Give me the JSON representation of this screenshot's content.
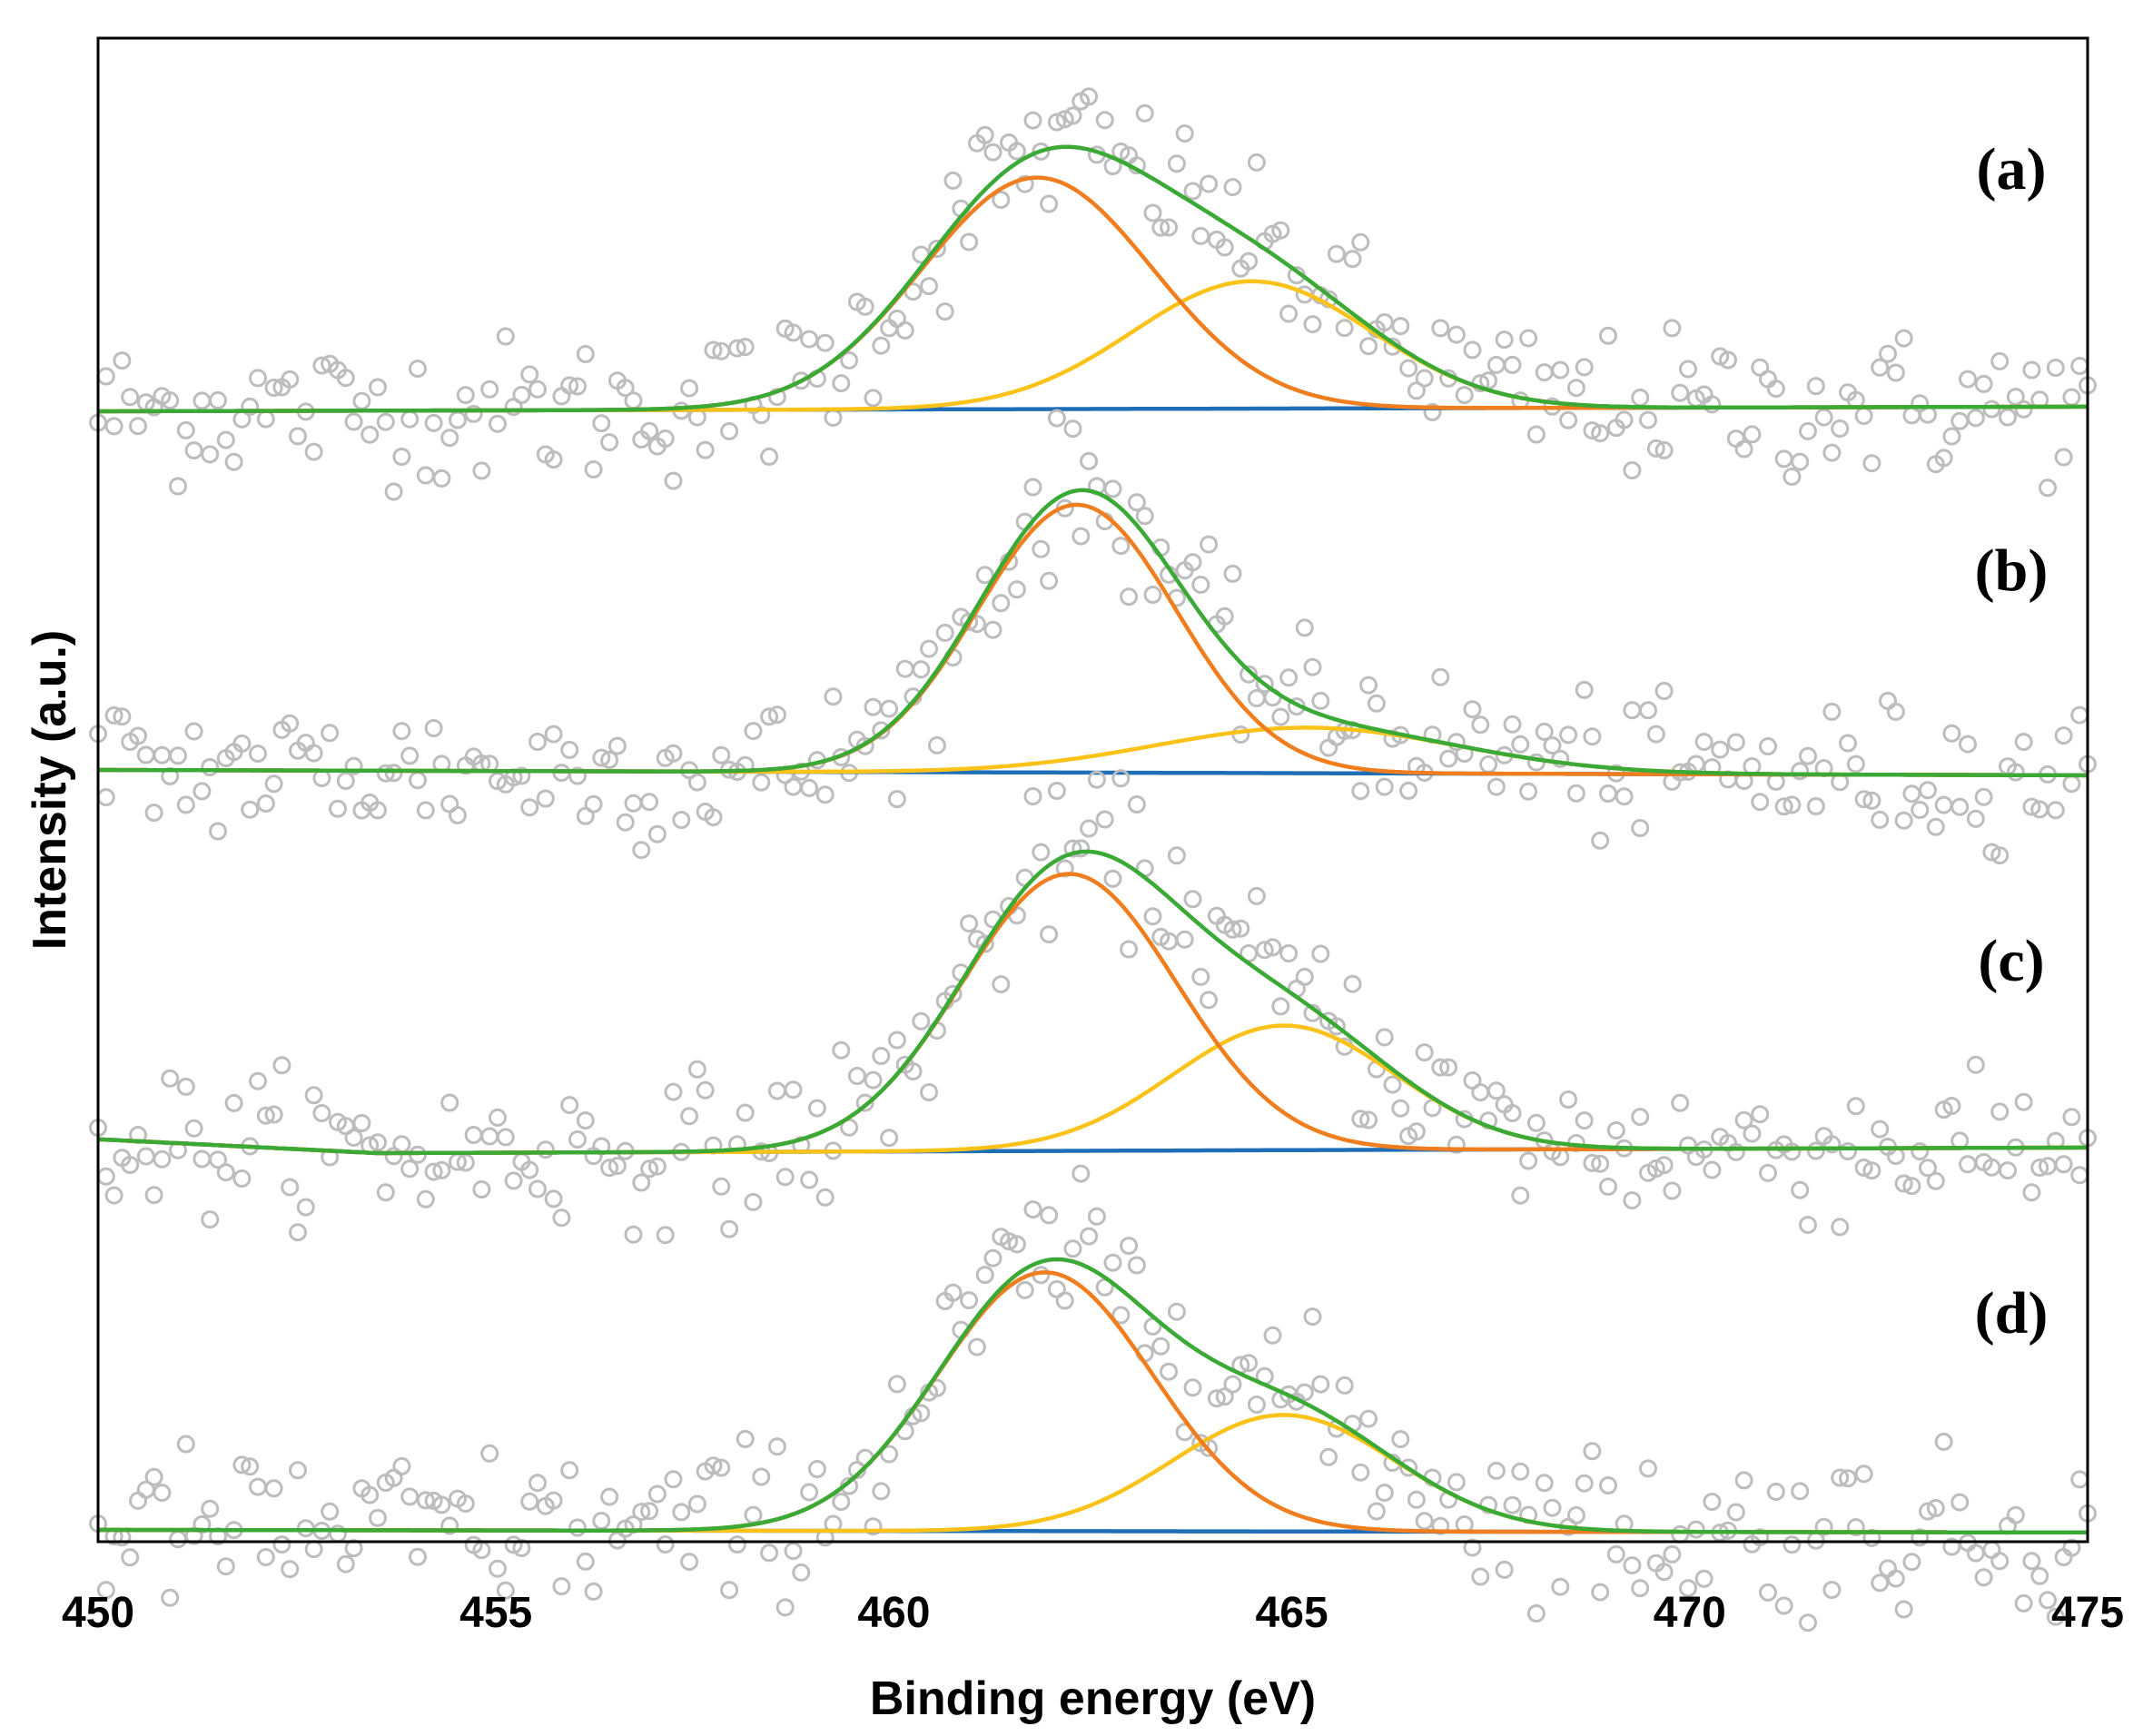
{
  "chart_data": {
    "type": "scatter",
    "xlabel": "Binding energy (eV)",
    "ylabel": "Intensity (a.u.)",
    "xlim": [
      450,
      475
    ],
    "xticks": [
      "450",
      "455",
      "460",
      "465",
      "470",
      "475"
    ],
    "y_tick_labels": "none",
    "grid": false,
    "legend": "none",
    "colors": {
      "data_points": "#bdbdbd",
      "envelope": "#3aa935",
      "peak1": "#f07d1e",
      "peak2": "#fbc21a",
      "background": "#1f6eb8"
    },
    "panels": [
      {
        "label": "(a)",
        "background_line": [
          [
            450,
            0
          ],
          [
            475,
            0.02
          ]
        ],
        "peak1": {
          "center": 461.8,
          "height": 1.0,
          "width": 1.45
        },
        "peak2": {
          "center": 464.5,
          "height": 0.55,
          "width": 1.5
        },
        "noise_amplitude": 0.35
      },
      {
        "label": "(b)",
        "background_line": [
          [
            450,
            0
          ],
          [
            475,
            -0.02
          ]
        ],
        "peak1": {
          "center": 462.3,
          "height": 1.0,
          "width": 1.25
        },
        "peak2": {
          "center": 465.2,
          "height": 0.17,
          "width": 1.9
        },
        "noise_amplitude": 0.3
      },
      {
        "label": "(c)",
        "background_line": [
          [
            450,
            0.05
          ],
          [
            453.5,
            0
          ],
          [
            475,
            0.02
          ]
        ],
        "peak1": {
          "center": 462.2,
          "height": 1.0,
          "width": 1.35
        },
        "peak2": {
          "center": 464.9,
          "height": 0.45,
          "width": 1.4
        },
        "noise_amplitude": 0.3
      },
      {
        "label": "(d)",
        "background_line": [
          [
            450,
            0
          ],
          [
            475,
            -0.01
          ]
        ],
        "peak1": {
          "center": 461.9,
          "height": 1.0,
          "width": 1.35
        },
        "peak2": {
          "center": 464.9,
          "height": 0.45,
          "width": 1.4
        },
        "noise_amplitude": 0.35
      }
    ]
  }
}
